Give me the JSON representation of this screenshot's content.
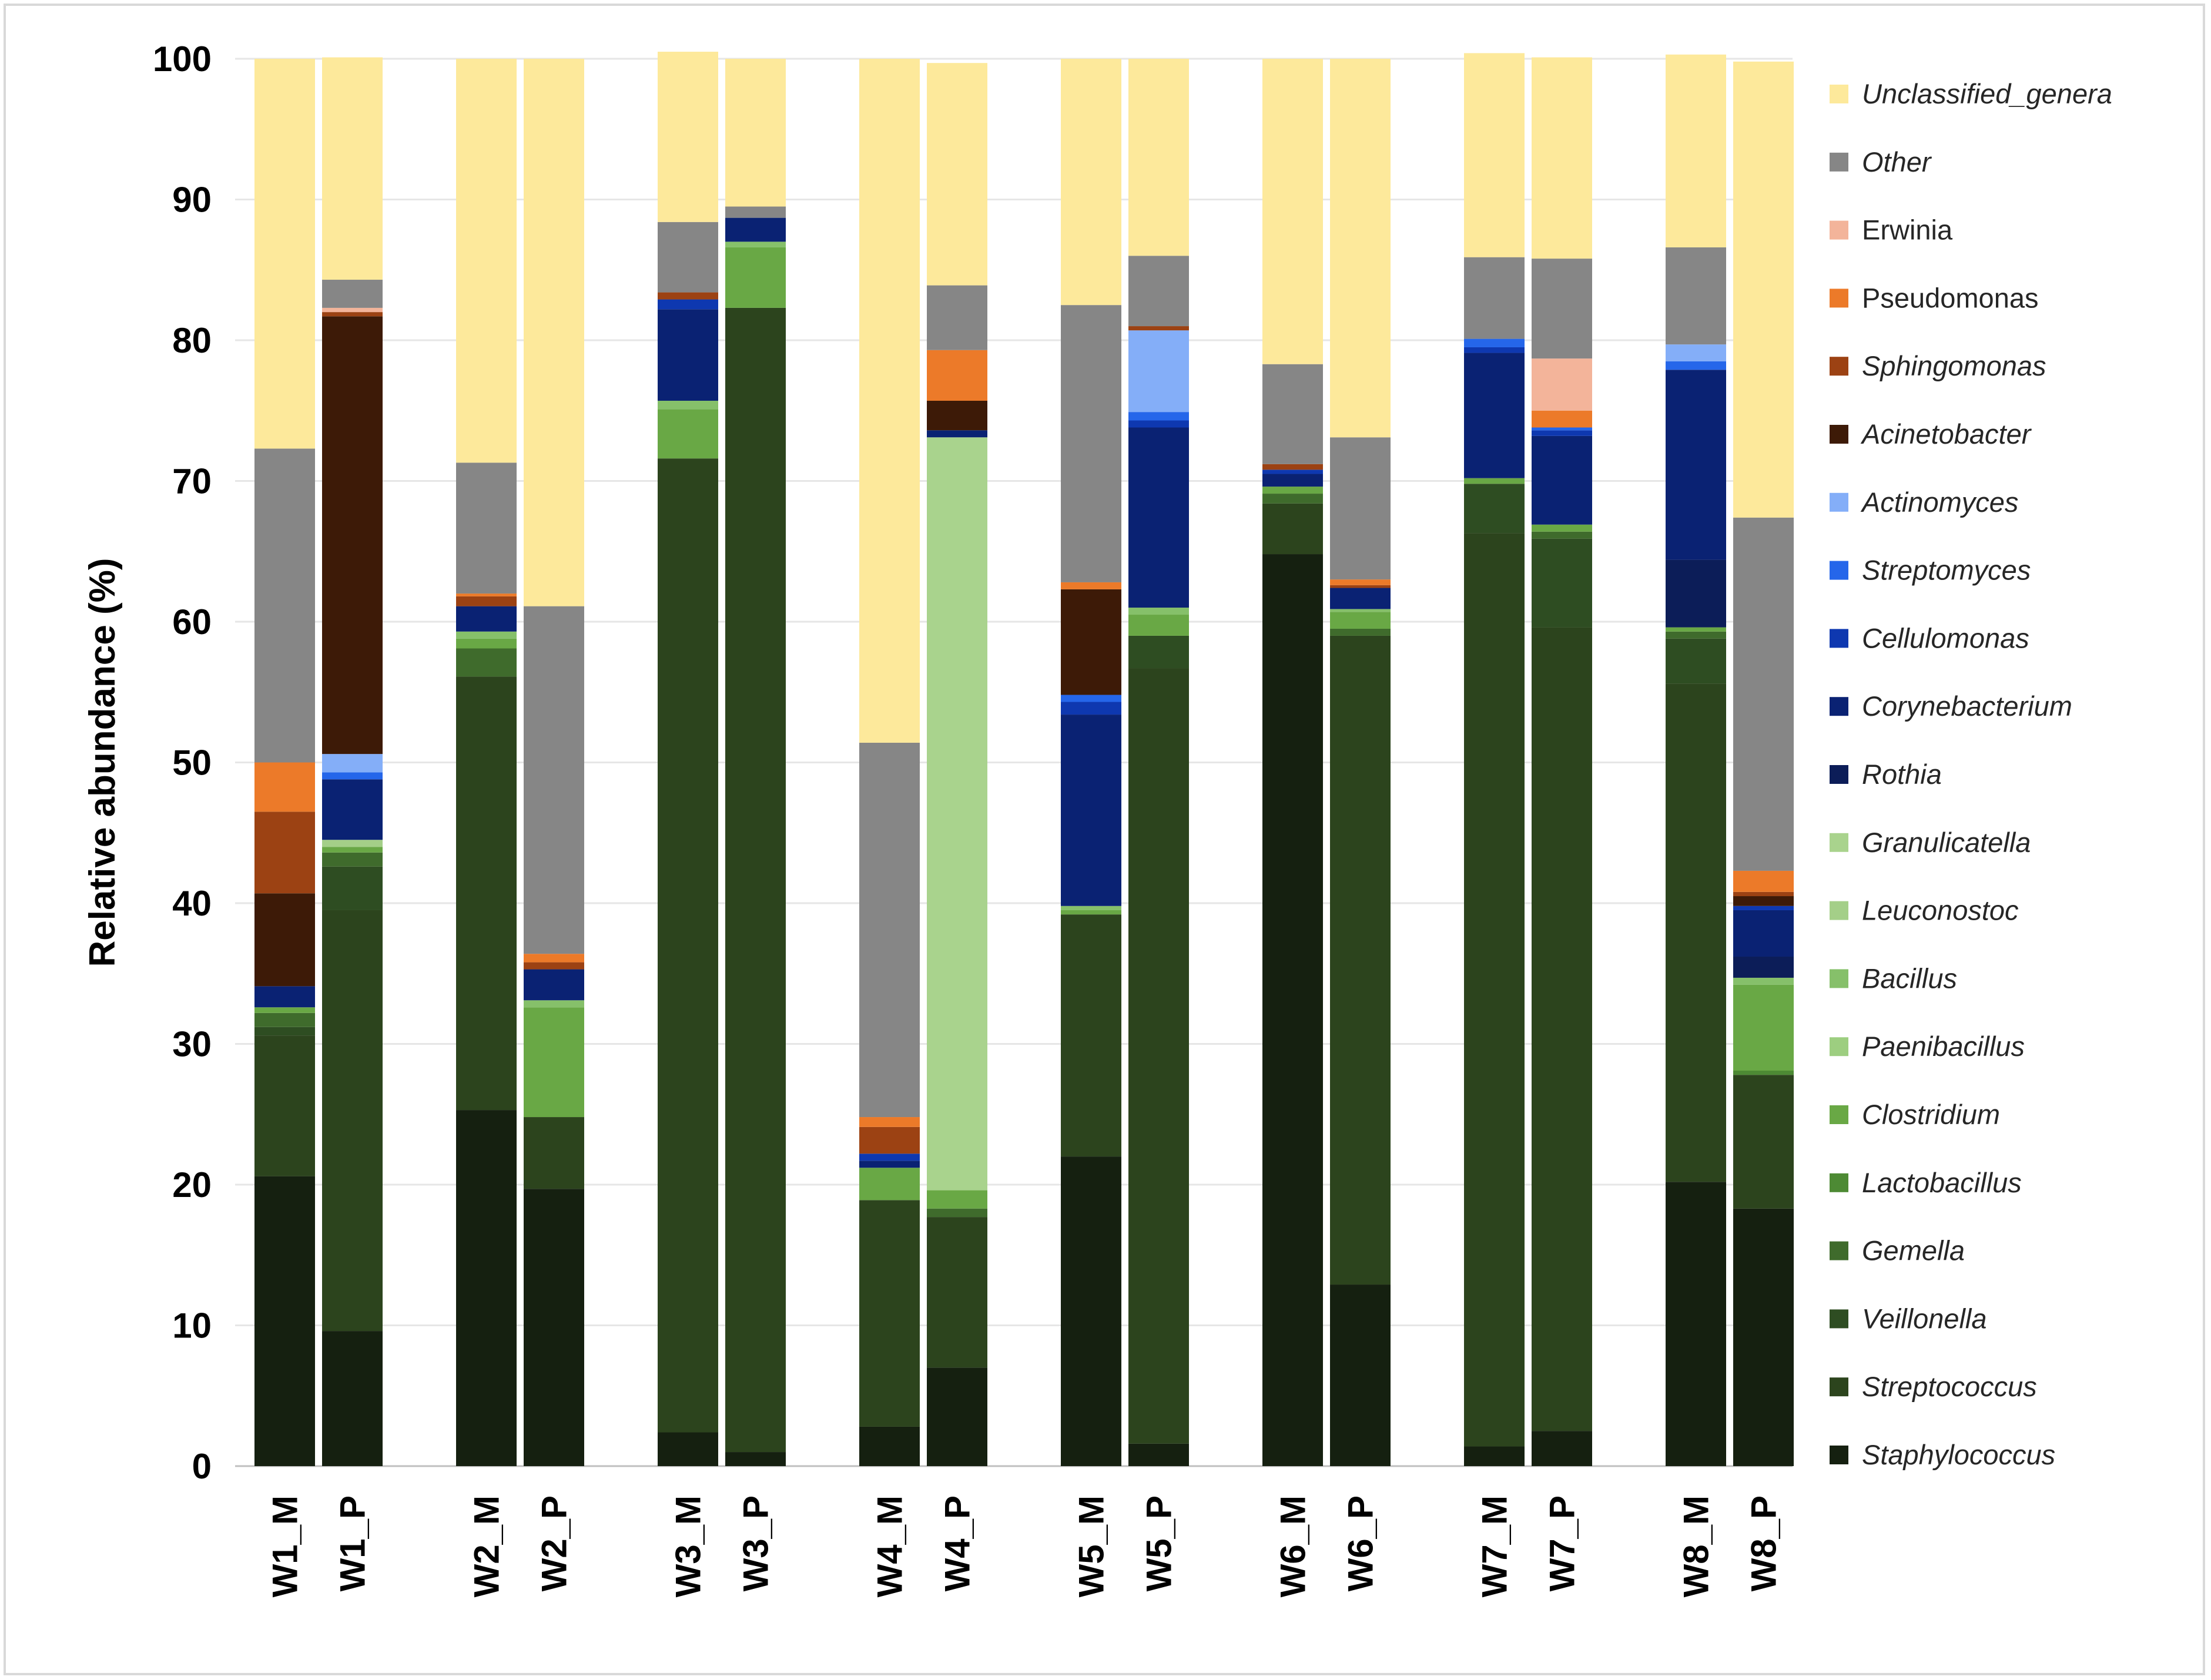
{
  "chart_data": {
    "type": "bar",
    "stacked": true,
    "title": "",
    "xlabel": "",
    "ylabel": "Relative abundance (%)",
    "ylim": [
      0,
      100
    ],
    "yticks": [
      "0",
      "10",
      "20",
      "30",
      "40",
      "50",
      "60",
      "70",
      "80",
      "90",
      "100"
    ],
    "grid": true,
    "legend_position": "right",
    "categories": [
      "W1_M",
      "W1_P",
      "W2_M",
      "W2_P",
      "W3_M",
      "W3_P",
      "W4_M",
      "W4_P",
      "W5_M",
      "W5_P",
      "W6_M",
      "W6_P",
      "W7_M",
      "W7_P",
      "W8_M",
      "W8_P"
    ],
    "series": [
      {
        "name": "Staphylococcus",
        "italic": true,
        "color": "#152010",
        "values": [
          20.6,
          9.6,
          25.3,
          19.7,
          2.4,
          1.0,
          2.8,
          7.0,
          22.0,
          1.6,
          64.8,
          12.9,
          1.4,
          2.5,
          20.2,
          18.3
        ]
      },
      {
        "name": "Streptococcus",
        "italic": true,
        "color": "#2c441d",
        "values": [
          10.0,
          29.9,
          30.8,
          5.1,
          69.2,
          81.3,
          16.1,
          10.7,
          17.2,
          55.1,
          3.6,
          46.1,
          64.9,
          57.1,
          35.4,
          9.5
        ]
      },
      {
        "name": "Veillonella",
        "italic": true,
        "color": "#2e4d22",
        "values": [
          0.6,
          3.1,
          0.0,
          0.0,
          0.0,
          0.0,
          0.0,
          0.0,
          0.0,
          2.3,
          0.0,
          0.0,
          3.5,
          6.3,
          3.2,
          0.0
        ]
      },
      {
        "name": "Gemella",
        "italic": true,
        "color": "#3f6b2c",
        "values": [
          1.0,
          1.0,
          2.0,
          0.0,
          0.0,
          0.0,
          0.0,
          0.6,
          0.0,
          0.0,
          0.7,
          0.5,
          0.0,
          0.5,
          0.5,
          0.0
        ]
      },
      {
        "name": "Lactobacillus",
        "italic": true,
        "color": "#4d8a34",
        "values": [
          0.0,
          0.0,
          0.0,
          0.0,
          0.0,
          0.0,
          0.0,
          0.0,
          0.0,
          0.0,
          0.0,
          0.0,
          0.0,
          0.0,
          0.0,
          0.3
        ]
      },
      {
        "name": "Clostridium",
        "italic": true,
        "color": "#69a845",
        "values": [
          0.4,
          0.4,
          0.7,
          7.8,
          3.5,
          4.3,
          2.3,
          1.3,
          0.3,
          1.5,
          0.5,
          1.2,
          0.4,
          0.5,
          0.3,
          6.1
        ]
      },
      {
        "name": "Paenibacillus",
        "italic": true,
        "color": "#9dce80",
        "values": [
          0.0,
          0.0,
          0.0,
          0.0,
          0.0,
          0.0,
          0.0,
          0.0,
          0.0,
          0.0,
          0.0,
          0.0,
          0.0,
          0.0,
          0.0,
          0.0
        ]
      },
      {
        "name": "Bacillus",
        "italic": true,
        "color": "#86c06a",
        "values": [
          0.0,
          0.0,
          0.5,
          0.5,
          0.6,
          0.4,
          0.0,
          0.0,
          0.3,
          0.5,
          0.0,
          0.2,
          0.0,
          0.0,
          0.0,
          0.5
        ]
      },
      {
        "name": "Leuconostoc",
        "italic": true,
        "color": "#a4cf88",
        "values": [
          0.0,
          0.5,
          0.0,
          0.0,
          0.0,
          0.0,
          0.0,
          0.0,
          0.0,
          0.0,
          0.0,
          0.0,
          0.0,
          0.0,
          0.0,
          0.0
        ]
      },
      {
        "name": "Granulicatella",
        "italic": true,
        "color": "#a9d38d",
        "values": [
          0.0,
          0.0,
          0.0,
          0.0,
          0.0,
          0.0,
          0.0,
          53.5,
          0.0,
          0.0,
          0.0,
          0.0,
          0.0,
          0.0,
          0.0,
          0.0
        ]
      },
      {
        "name": "Rothia",
        "italic": true,
        "color": "#0c1d58",
        "values": [
          0.0,
          0.0,
          0.0,
          0.0,
          0.0,
          0.0,
          0.0,
          0.0,
          0.0,
          0.0,
          0.0,
          0.0,
          0.0,
          0.0,
          4.8,
          1.5
        ]
      },
      {
        "name": "Corynebacterium",
        "italic": true,
        "color": "#0a2273",
        "values": [
          1.5,
          4.3,
          1.8,
          2.2,
          6.5,
          1.7,
          0.5,
          0.5,
          13.6,
          12.8,
          0.9,
          1.5,
          8.9,
          6.3,
          13.5,
          3.3
        ]
      },
      {
        "name": "Cellulomonas",
        "italic": true,
        "color": "#0e38b0",
        "values": [
          0.0,
          0.0,
          0.0,
          0.0,
          0.7,
          0.0,
          0.5,
          0.0,
          0.9,
          0.5,
          0.3,
          0.0,
          0.4,
          0.4,
          0.0,
          0.3
        ]
      },
      {
        "name": "Streptomyces",
        "italic": true,
        "color": "#2566ea",
        "values": [
          0.0,
          0.5,
          0.0,
          0.0,
          0.0,
          0.0,
          0.0,
          0.0,
          0.5,
          0.6,
          0.0,
          0.0,
          0.6,
          0.2,
          0.6,
          0.0
        ]
      },
      {
        "name": "Actinomyces",
        "italic": true,
        "color": "#84aef8",
        "values": [
          0.0,
          1.3,
          0.0,
          0.0,
          0.0,
          0.0,
          0.0,
          0.0,
          0.0,
          5.8,
          0.0,
          0.0,
          0.0,
          0.0,
          1.2,
          0.0
        ]
      },
      {
        "name": "Acinetobacter",
        "italic": true,
        "color": "#3d1a07",
        "values": [
          6.6,
          31.1,
          0.0,
          0.0,
          0.0,
          0.0,
          0.0,
          2.1,
          7.5,
          0.0,
          0.0,
          0.0,
          0.0,
          0.0,
          0.0,
          0.7
        ]
      },
      {
        "name": "Sphingomonas",
        "italic": true,
        "color": "#9c4213",
        "values": [
          5.8,
          0.3,
          0.7,
          0.5,
          0.5,
          0.0,
          1.9,
          0.0,
          0.0,
          0.3,
          0.4,
          0.2,
          0.0,
          0.0,
          0.0,
          0.3
        ]
      },
      {
        "name": "Pseudomonas",
        "italic": false,
        "color": "#ec7a29",
        "values": [
          3.5,
          0.0,
          0.2,
          0.6,
          0.0,
          0.0,
          0.7,
          3.6,
          0.5,
          0.0,
          0.0,
          0.4,
          0.0,
          1.2,
          0.0,
          1.5
        ]
      },
      {
        "name": "Erwinia",
        "italic": false,
        "color": "#f3b49a",
        "values": [
          0.0,
          0.3,
          0.0,
          0.0,
          0.0,
          0.0,
          0.0,
          0.0,
          0.0,
          0.0,
          0.0,
          0.0,
          0.0,
          3.7,
          0.0,
          0.0
        ]
      },
      {
        "name": "Other",
        "italic": true,
        "color": "#868686",
        "values": [
          22.3,
          2.0,
          9.3,
          24.7,
          5.0,
          0.8,
          26.6,
          4.6,
          19.7,
          5.0,
          7.1,
          10.1,
          5.8,
          7.1,
          6.9,
          25.1
        ]
      },
      {
        "name": "Unclassified_genera",
        "italic": true,
        "color": "#fde99b",
        "values": [
          27.7,
          15.8,
          28.7,
          38.9,
          12.1,
          10.5,
          48.6,
          15.8,
          17.5,
          14.0,
          21.7,
          26.9,
          14.5,
          14.3,
          13.7,
          32.4
        ]
      }
    ]
  }
}
